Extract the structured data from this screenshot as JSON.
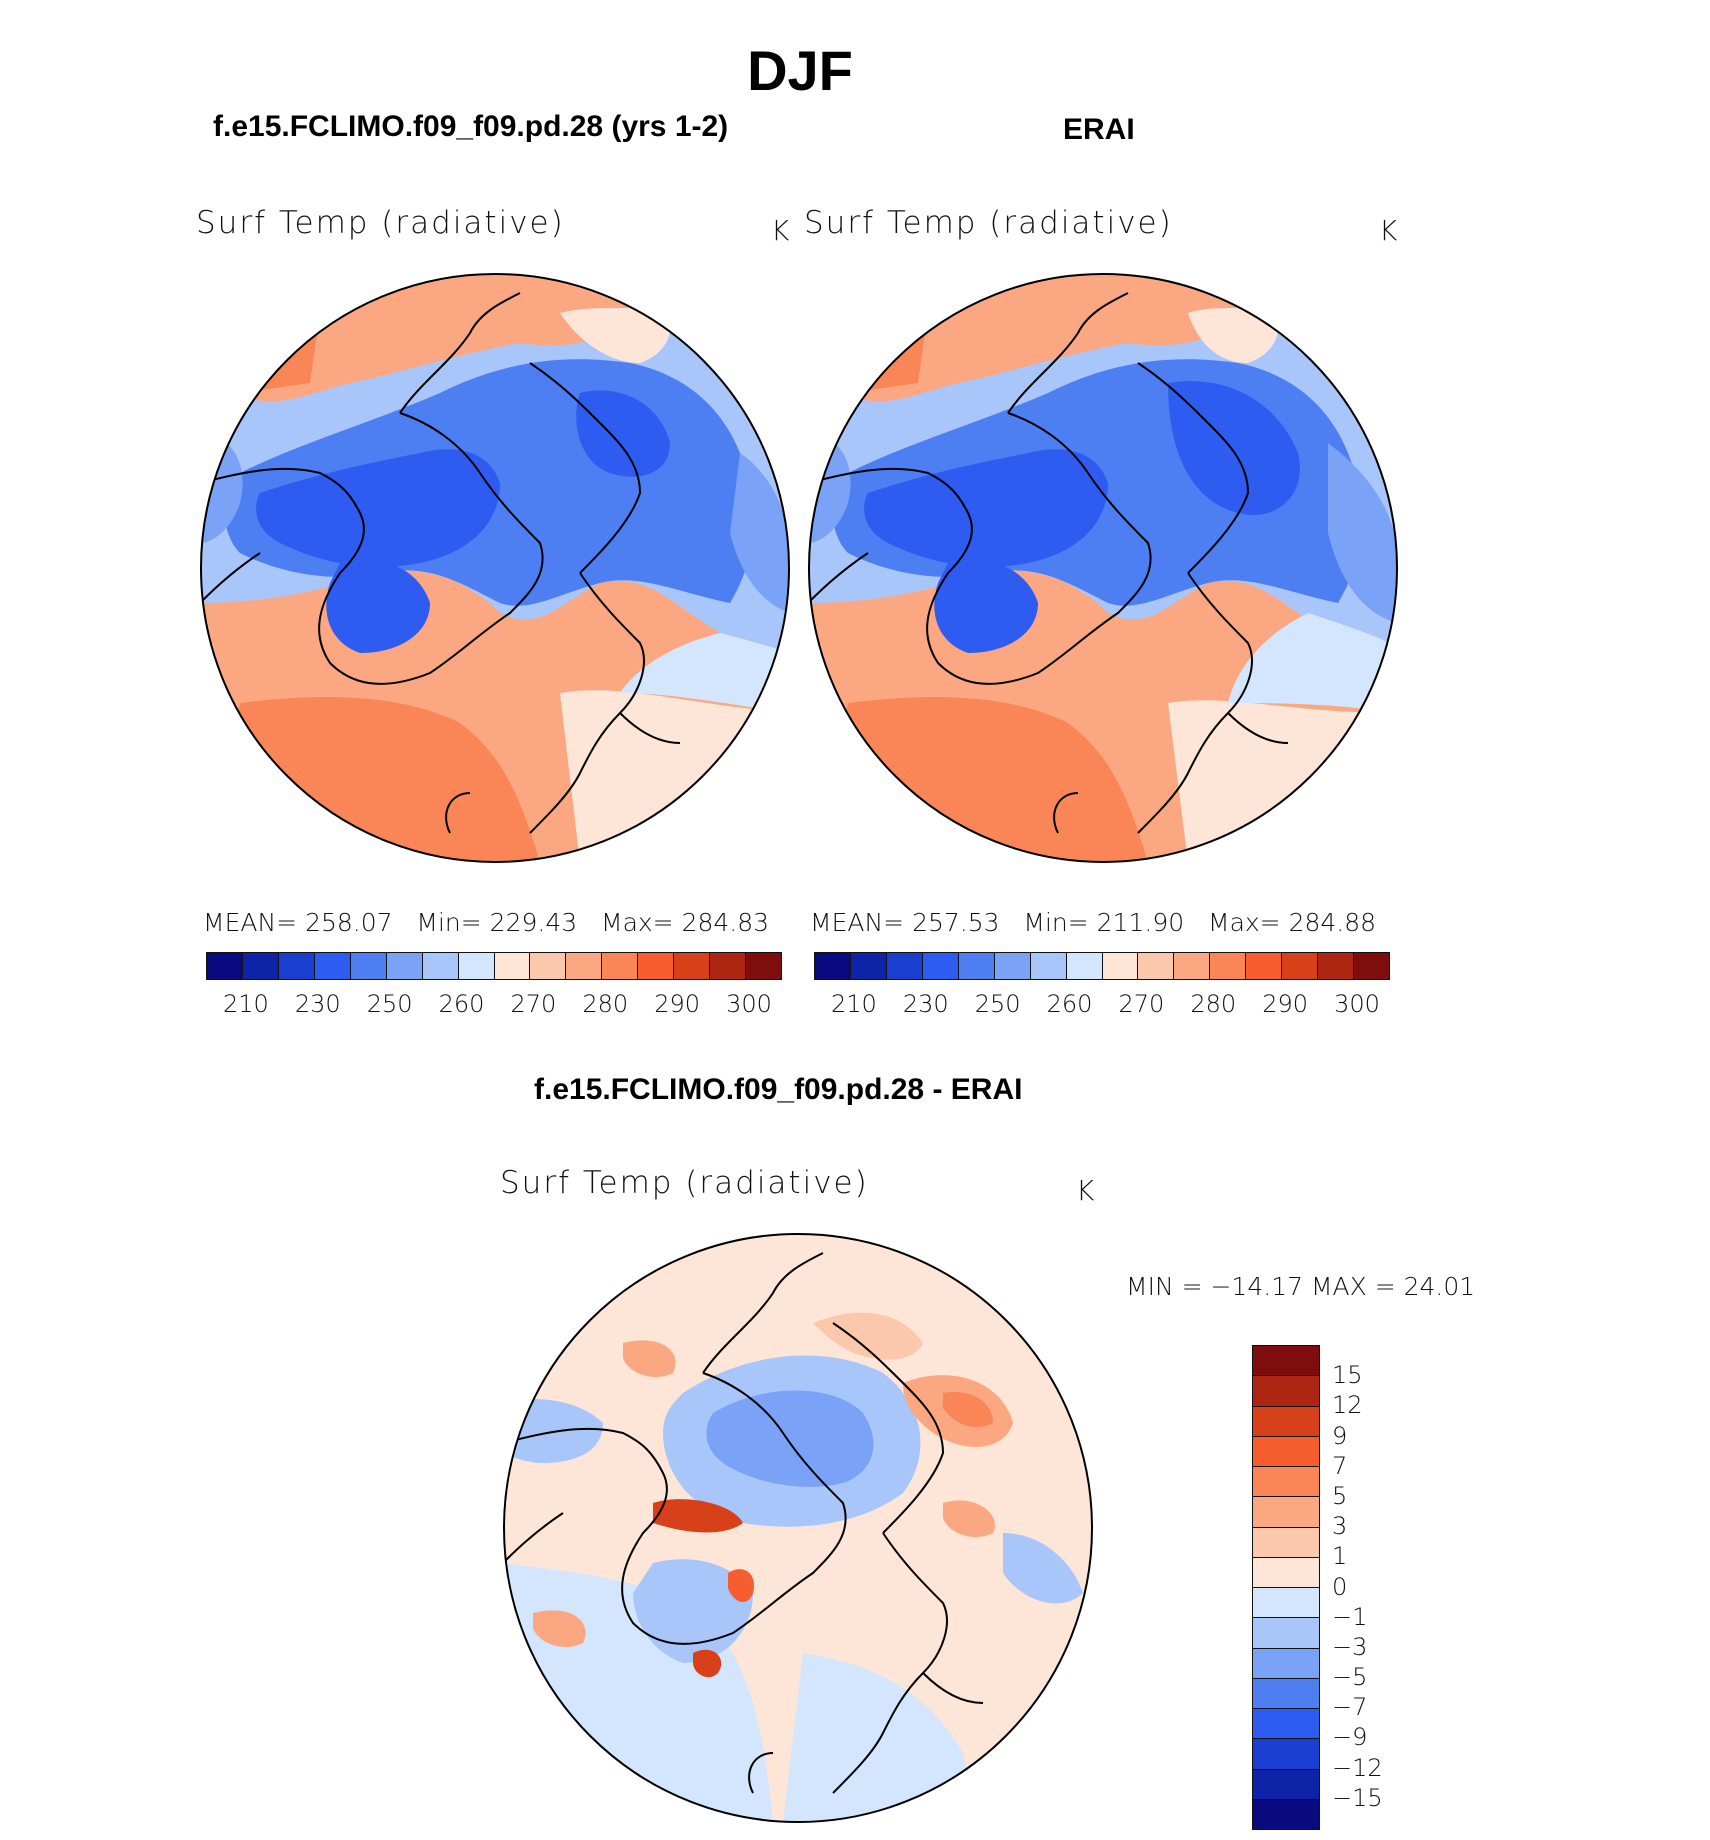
{
  "page": {
    "title": "DJF"
  },
  "panels": [
    {
      "case_title": "f.e15.FCLIMO.f09_f09.pd.28 (yrs 1-2)",
      "variable": "Surf Temp (radiative)",
      "units": "K",
      "stats": {
        "mean_label": "MEAN=",
        "mean": "258.07",
        "min_label": "Min=",
        "min": "229.43",
        "max_label": "Max=",
        "max": "284.83"
      }
    },
    {
      "case_title": "ERAI",
      "variable": "Surf Temp (radiative)",
      "units": "K",
      "stats": {
        "mean_label": "MEAN=",
        "mean": "257.53",
        "min_label": "Min=",
        "min": "211.90",
        "max_label": "Max=",
        "max": "284.88"
      }
    }
  ],
  "diff_panel": {
    "case_title": "f.e15.FCLIMO.f09_f09.pd.28 - ERAI",
    "variable": "Surf Temp (radiative)",
    "units": "K",
    "minmax": "MIN = −14.17 MAX =   24.01"
  },
  "abs_colorbar": {
    "tick_labels": [
      "210",
      "230",
      "250",
      "260",
      "270",
      "280",
      "290",
      "300"
    ],
    "colors": [
      "#0a0a80",
      "#0d23a8",
      "#1a3ed0",
      "#2e5cf0",
      "#4d7ef2",
      "#7aa2f6",
      "#a8c6fa",
      "#d3e6fd",
      "#fde6d8",
      "#fcc8ac",
      "#fba882",
      "#fa8658",
      "#f65e30",
      "#d8401a",
      "#ad2410",
      "#800d0d"
    ]
  },
  "diff_colorbar": {
    "tick_labels": [
      "15",
      "12",
      "9",
      "7",
      "5",
      "3",
      "1",
      "0",
      "−1",
      "−3",
      "−5",
      "−7",
      "−9",
      "−12",
      "−15"
    ],
    "colors": [
      "#800d0d",
      "#ad2410",
      "#d8401a",
      "#f65e30",
      "#fa8658",
      "#fba882",
      "#fcc8ac",
      "#fde6d8",
      "#d3e6fd",
      "#a8c6fa",
      "#7aa2f6",
      "#4d7ef2",
      "#2e5cf0",
      "#1a3ed0",
      "#0d23a8",
      "#0a0a80"
    ]
  }
}
